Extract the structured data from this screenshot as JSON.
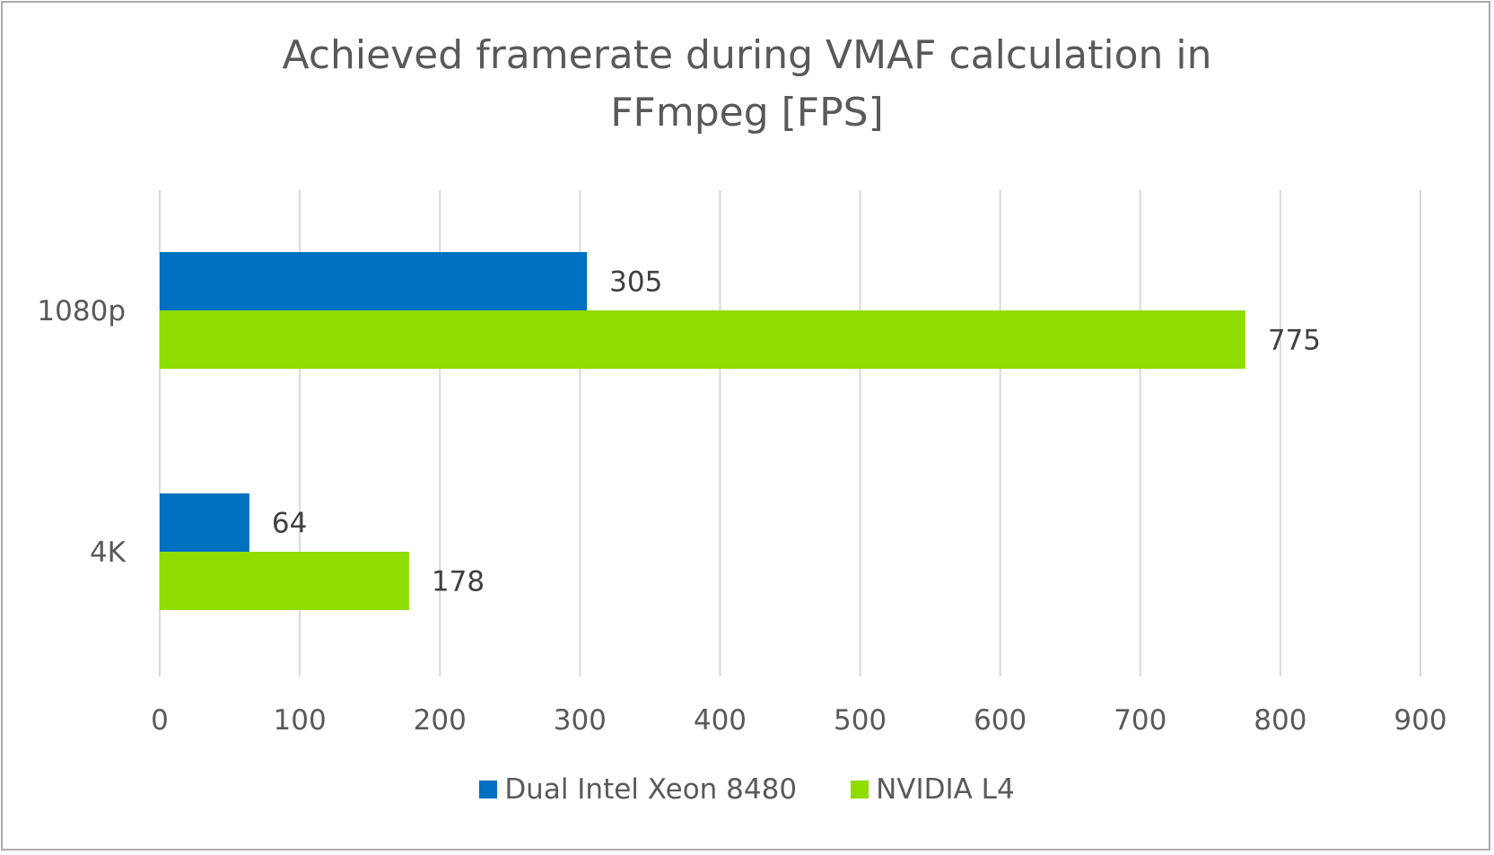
{
  "chart_data": {
    "type": "bar",
    "orientation": "horizontal",
    "title": "Achieved framerate during VMAF calculation in FFmpeg [FPS]",
    "title_lines": [
      "Achieved framerate during VMAF calculation in",
      "FFmpeg [FPS]"
    ],
    "categories": [
      "1080p",
      "4K"
    ],
    "series": [
      {
        "name": "Dual Intel Xeon 8480",
        "values": [
          305,
          64
        ],
        "color": "#0070C0"
      },
      {
        "name": "NVIDIA L4",
        "values": [
          775,
          178
        ],
        "color": "#8EDC00"
      }
    ],
    "xlim": [
      0,
      900
    ],
    "xticks": [
      0,
      100,
      200,
      300,
      400,
      500,
      600,
      700,
      800,
      900
    ],
    "grid": true,
    "legend": "bottom",
    "data_labels": true
  }
}
